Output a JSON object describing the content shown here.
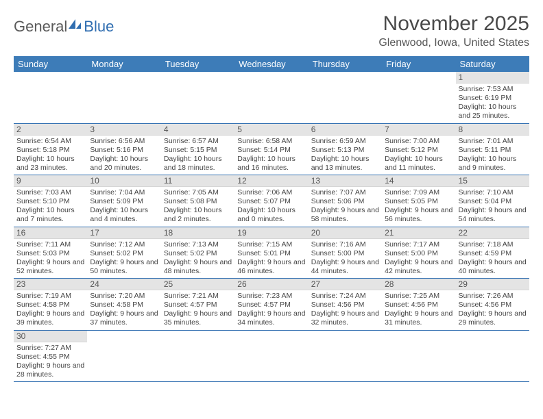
{
  "logo": {
    "general": "General",
    "blue": "Blue"
  },
  "title": "November 2025",
  "location": "Glenwood, Iowa, United States",
  "colors": {
    "header_bg": "#3d7cb8",
    "header_text": "#ffffff",
    "border": "#2f6db0",
    "daynum_bg": "#e4e4e4",
    "text": "#444444",
    "logo_gray": "#5a5a5a",
    "logo_blue": "#2f6db0"
  },
  "dayHeaders": [
    "Sunday",
    "Monday",
    "Tuesday",
    "Wednesday",
    "Thursday",
    "Friday",
    "Saturday"
  ],
  "weeks": [
    [
      null,
      null,
      null,
      null,
      null,
      null,
      {
        "n": "1",
        "sunrise": "Sunrise: 7:53 AM",
        "sunset": "Sunset: 6:19 PM",
        "daylight": "Daylight: 10 hours and 25 minutes."
      }
    ],
    [
      {
        "n": "2",
        "sunrise": "Sunrise: 6:54 AM",
        "sunset": "Sunset: 5:18 PM",
        "daylight": "Daylight: 10 hours and 23 minutes."
      },
      {
        "n": "3",
        "sunrise": "Sunrise: 6:56 AM",
        "sunset": "Sunset: 5:16 PM",
        "daylight": "Daylight: 10 hours and 20 minutes."
      },
      {
        "n": "4",
        "sunrise": "Sunrise: 6:57 AM",
        "sunset": "Sunset: 5:15 PM",
        "daylight": "Daylight: 10 hours and 18 minutes."
      },
      {
        "n": "5",
        "sunrise": "Sunrise: 6:58 AM",
        "sunset": "Sunset: 5:14 PM",
        "daylight": "Daylight: 10 hours and 16 minutes."
      },
      {
        "n": "6",
        "sunrise": "Sunrise: 6:59 AM",
        "sunset": "Sunset: 5:13 PM",
        "daylight": "Daylight: 10 hours and 13 minutes."
      },
      {
        "n": "7",
        "sunrise": "Sunrise: 7:00 AM",
        "sunset": "Sunset: 5:12 PM",
        "daylight": "Daylight: 10 hours and 11 minutes."
      },
      {
        "n": "8",
        "sunrise": "Sunrise: 7:01 AM",
        "sunset": "Sunset: 5:11 PM",
        "daylight": "Daylight: 10 hours and 9 minutes."
      }
    ],
    [
      {
        "n": "9",
        "sunrise": "Sunrise: 7:03 AM",
        "sunset": "Sunset: 5:10 PM",
        "daylight": "Daylight: 10 hours and 7 minutes."
      },
      {
        "n": "10",
        "sunrise": "Sunrise: 7:04 AM",
        "sunset": "Sunset: 5:09 PM",
        "daylight": "Daylight: 10 hours and 4 minutes."
      },
      {
        "n": "11",
        "sunrise": "Sunrise: 7:05 AM",
        "sunset": "Sunset: 5:08 PM",
        "daylight": "Daylight: 10 hours and 2 minutes."
      },
      {
        "n": "12",
        "sunrise": "Sunrise: 7:06 AM",
        "sunset": "Sunset: 5:07 PM",
        "daylight": "Daylight: 10 hours and 0 minutes."
      },
      {
        "n": "13",
        "sunrise": "Sunrise: 7:07 AM",
        "sunset": "Sunset: 5:06 PM",
        "daylight": "Daylight: 9 hours and 58 minutes."
      },
      {
        "n": "14",
        "sunrise": "Sunrise: 7:09 AM",
        "sunset": "Sunset: 5:05 PM",
        "daylight": "Daylight: 9 hours and 56 minutes."
      },
      {
        "n": "15",
        "sunrise": "Sunrise: 7:10 AM",
        "sunset": "Sunset: 5:04 PM",
        "daylight": "Daylight: 9 hours and 54 minutes."
      }
    ],
    [
      {
        "n": "16",
        "sunrise": "Sunrise: 7:11 AM",
        "sunset": "Sunset: 5:03 PM",
        "daylight": "Daylight: 9 hours and 52 minutes."
      },
      {
        "n": "17",
        "sunrise": "Sunrise: 7:12 AM",
        "sunset": "Sunset: 5:02 PM",
        "daylight": "Daylight: 9 hours and 50 minutes."
      },
      {
        "n": "18",
        "sunrise": "Sunrise: 7:13 AM",
        "sunset": "Sunset: 5:02 PM",
        "daylight": "Daylight: 9 hours and 48 minutes."
      },
      {
        "n": "19",
        "sunrise": "Sunrise: 7:15 AM",
        "sunset": "Sunset: 5:01 PM",
        "daylight": "Daylight: 9 hours and 46 minutes."
      },
      {
        "n": "20",
        "sunrise": "Sunrise: 7:16 AM",
        "sunset": "Sunset: 5:00 PM",
        "daylight": "Daylight: 9 hours and 44 minutes."
      },
      {
        "n": "21",
        "sunrise": "Sunrise: 7:17 AM",
        "sunset": "Sunset: 5:00 PM",
        "daylight": "Daylight: 9 hours and 42 minutes."
      },
      {
        "n": "22",
        "sunrise": "Sunrise: 7:18 AM",
        "sunset": "Sunset: 4:59 PM",
        "daylight": "Daylight: 9 hours and 40 minutes."
      }
    ],
    [
      {
        "n": "23",
        "sunrise": "Sunrise: 7:19 AM",
        "sunset": "Sunset: 4:58 PM",
        "daylight": "Daylight: 9 hours and 39 minutes."
      },
      {
        "n": "24",
        "sunrise": "Sunrise: 7:20 AM",
        "sunset": "Sunset: 4:58 PM",
        "daylight": "Daylight: 9 hours and 37 minutes."
      },
      {
        "n": "25",
        "sunrise": "Sunrise: 7:21 AM",
        "sunset": "Sunset: 4:57 PM",
        "daylight": "Daylight: 9 hours and 35 minutes."
      },
      {
        "n": "26",
        "sunrise": "Sunrise: 7:23 AM",
        "sunset": "Sunset: 4:57 PM",
        "daylight": "Daylight: 9 hours and 34 minutes."
      },
      {
        "n": "27",
        "sunrise": "Sunrise: 7:24 AM",
        "sunset": "Sunset: 4:56 PM",
        "daylight": "Daylight: 9 hours and 32 minutes."
      },
      {
        "n": "28",
        "sunrise": "Sunrise: 7:25 AM",
        "sunset": "Sunset: 4:56 PM",
        "daylight": "Daylight: 9 hours and 31 minutes."
      },
      {
        "n": "29",
        "sunrise": "Sunrise: 7:26 AM",
        "sunset": "Sunset: 4:56 PM",
        "daylight": "Daylight: 9 hours and 29 minutes."
      }
    ],
    [
      {
        "n": "30",
        "sunrise": "Sunrise: 7:27 AM",
        "sunset": "Sunset: 4:55 PM",
        "daylight": "Daylight: 9 hours and 28 minutes."
      },
      null,
      null,
      null,
      null,
      null,
      null
    ]
  ]
}
